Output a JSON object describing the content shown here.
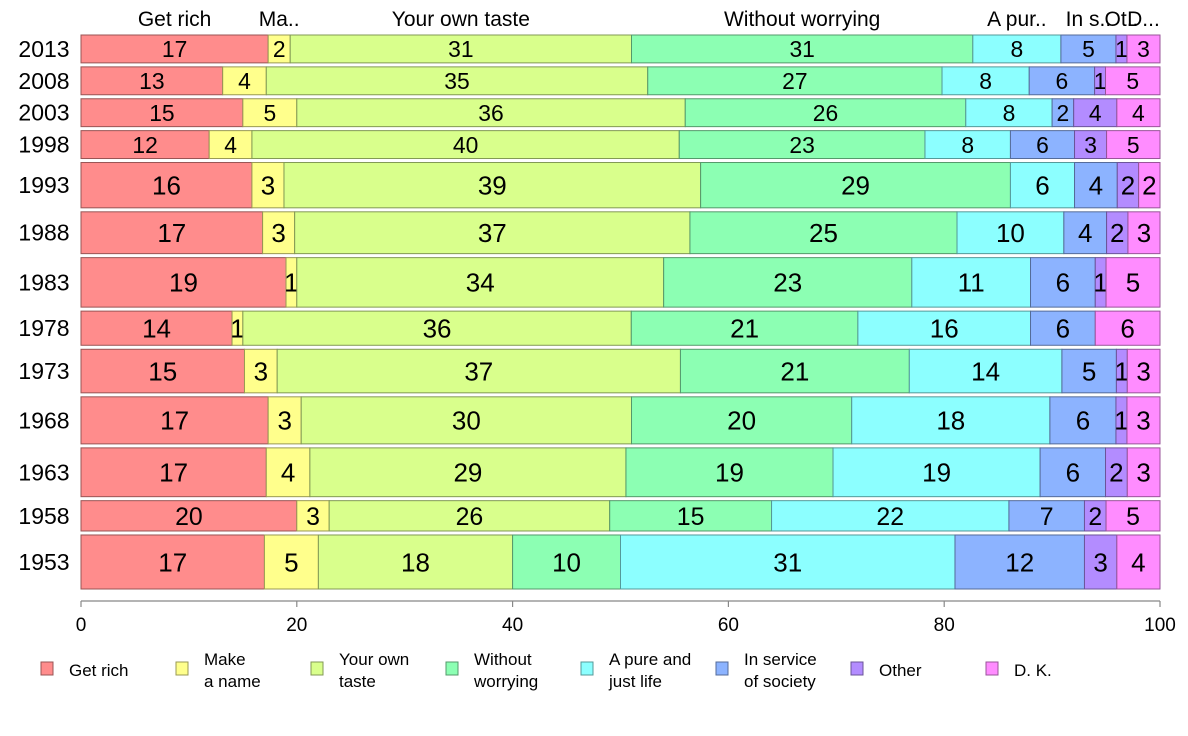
{
  "chart_data": {
    "type": "bar",
    "orientation": "horizontal",
    "stacked": true,
    "xlim": [
      0,
      100
    ],
    "x_ticks": [
      "0",
      "20",
      "40",
      "60",
      "80",
      "100"
    ],
    "grid": false,
    "legend_position": "bottom",
    "top_labels": [
      "Get rich",
      "Ma..",
      "Your own taste",
      "Without worrying",
      "A pur..",
      "In s..",
      "Ot..",
      "D..."
    ],
    "categories": [
      "2013",
      "2008",
      "2003",
      "1998",
      "1993",
      "1988",
      "1983",
      "1978",
      "1973",
      "1968",
      "1963",
      "1958",
      "1953"
    ],
    "series": [
      {
        "name": "Get rich",
        "color": "#ff8c8c",
        "values": [
          17,
          13,
          15,
          12,
          16,
          17,
          19,
          14,
          15,
          17,
          17,
          20,
          17
        ],
        "labels": [
          "17",
          "13",
          "15",
          "12",
          "16",
          "17",
          "19",
          "14",
          "15",
          "17",
          "17",
          "20",
          "17"
        ]
      },
      {
        "name": "Make a name",
        "color": "#ffff8c",
        "values": [
          2,
          4,
          5,
          4,
          3,
          3,
          1,
          1,
          3,
          3,
          4,
          3,
          5
        ],
        "labels": [
          "2",
          "4",
          "5",
          "4",
          "3",
          "3",
          "1",
          "1",
          "3",
          "3",
          "4",
          "3",
          "5"
        ]
      },
      {
        "name": "Your own taste",
        "color": "#d9ff8c",
        "values": [
          31,
          35,
          36,
          40,
          39,
          37,
          34,
          36,
          37,
          30,
          29,
          26,
          18
        ],
        "labels": [
          "31",
          "35",
          "36",
          "40",
          "39",
          "37",
          "34",
          "36",
          "37",
          "30",
          "29",
          "26",
          "18"
        ]
      },
      {
        "name": "Without worrying",
        "color": "#8cffb3",
        "values": [
          31,
          27,
          26,
          23,
          29,
          25,
          23,
          21,
          21,
          20,
          19,
          15,
          10
        ],
        "labels": [
          "31",
          "27",
          "26",
          "23",
          "29",
          "25",
          "23",
          "21",
          "21",
          "20",
          "19",
          "15",
          "10"
        ]
      },
      {
        "name": "A pure and just life",
        "color": "#8cffff",
        "values": [
          8,
          8,
          8,
          8,
          6,
          10,
          11,
          16,
          14,
          18,
          19,
          22,
          31
        ],
        "labels": [
          "8",
          "8",
          "8",
          "8",
          "6",
          "10",
          "11",
          "16",
          "14",
          "18",
          "19",
          "22",
          "31"
        ]
      },
      {
        "name": "In service of society",
        "color": "#8cb3ff",
        "values": [
          5,
          6,
          2,
          6,
          4,
          4,
          6,
          6,
          5,
          6,
          6,
          7,
          12
        ],
        "labels": [
          "5",
          "6",
          "2",
          "6",
          "4",
          "4",
          "6",
          "6",
          "5",
          "6",
          "6",
          "7",
          "12"
        ]
      },
      {
        "name": "Other",
        "color": "#b38cff",
        "values": [
          1,
          1,
          4,
          3,
          2,
          2,
          1,
          0,
          1,
          1,
          2,
          2,
          3
        ],
        "labels": [
          "1",
          "1",
          "4",
          "3",
          "2",
          "2",
          "1",
          "",
          "1",
          "1",
          "2",
          "2",
          "3"
        ]
      },
      {
        "name": "D. K.",
        "color": "#ff8cff",
        "values": [
          3,
          5,
          4,
          5,
          2,
          3,
          5,
          6,
          3,
          3,
          3,
          5,
          4
        ],
        "labels": [
          "3",
          "5",
          "4",
          "5",
          "2",
          "3",
          "5",
          "6",
          "3",
          "3",
          "3",
          "5",
          "4"
        ]
      }
    ],
    "legend": [
      {
        "lines": [
          "Get rich"
        ],
        "color": "#ff8c8c"
      },
      {
        "lines": [
          "Make",
          "a name"
        ],
        "color": "#ffff8c"
      },
      {
        "lines": [
          "Your own",
          "taste"
        ],
        "color": "#d9ff8c"
      },
      {
        "lines": [
          "Without",
          "worrying"
        ],
        "color": "#8cffb3"
      },
      {
        "lines": [
          "A pure and",
          "just life"
        ],
        "color": "#8cffff"
      },
      {
        "lines": [
          "In service",
          "of society"
        ],
        "color": "#8cb3ff"
      },
      {
        "lines": [
          "Other"
        ],
        "color": "#b38cff"
      },
      {
        "lines": [
          "D. K."
        ],
        "color": "#ff8cff"
      }
    ]
  }
}
